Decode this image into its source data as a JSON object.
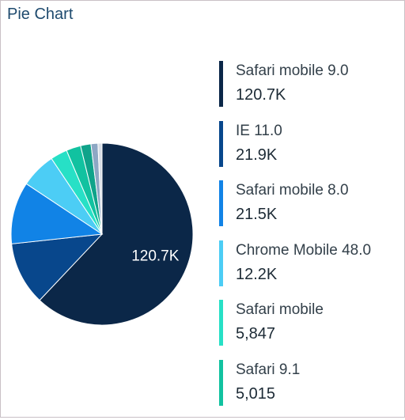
{
  "panel": {
    "title": "Pie Chart"
  },
  "chart_data": {
    "type": "pie",
    "slices": [
      {
        "label": "Safari mobile 9.0",
        "value": 120700,
        "display": "120.7K",
        "color": "#0b2748"
      },
      {
        "label": "IE 11.0",
        "value": 21900,
        "display": "21.9K",
        "color": "#08478c"
      },
      {
        "label": "Safari mobile 8.0",
        "value": 21500,
        "display": "21.5K",
        "color": "#1183e6"
      },
      {
        "label": "Chrome Mobile 48.0",
        "value": 12200,
        "display": "12.2K",
        "color": "#4ccdf5"
      },
      {
        "label": "Safari mobile",
        "value": 5847,
        "display": "5,847",
        "color": "#27e0c6"
      },
      {
        "label": "Safari 9.1",
        "value": 5015,
        "display": "5,015",
        "color": "#11c2a0"
      },
      {
        "value": 3600,
        "color": "#0fa38a"
      },
      {
        "value": 2400,
        "color": "#8da7c4"
      },
      {
        "value": 1400,
        "color": "#d8dee6"
      }
    ],
    "data_labels": [
      {
        "slice": 0,
        "text": "120.7K"
      }
    ]
  }
}
